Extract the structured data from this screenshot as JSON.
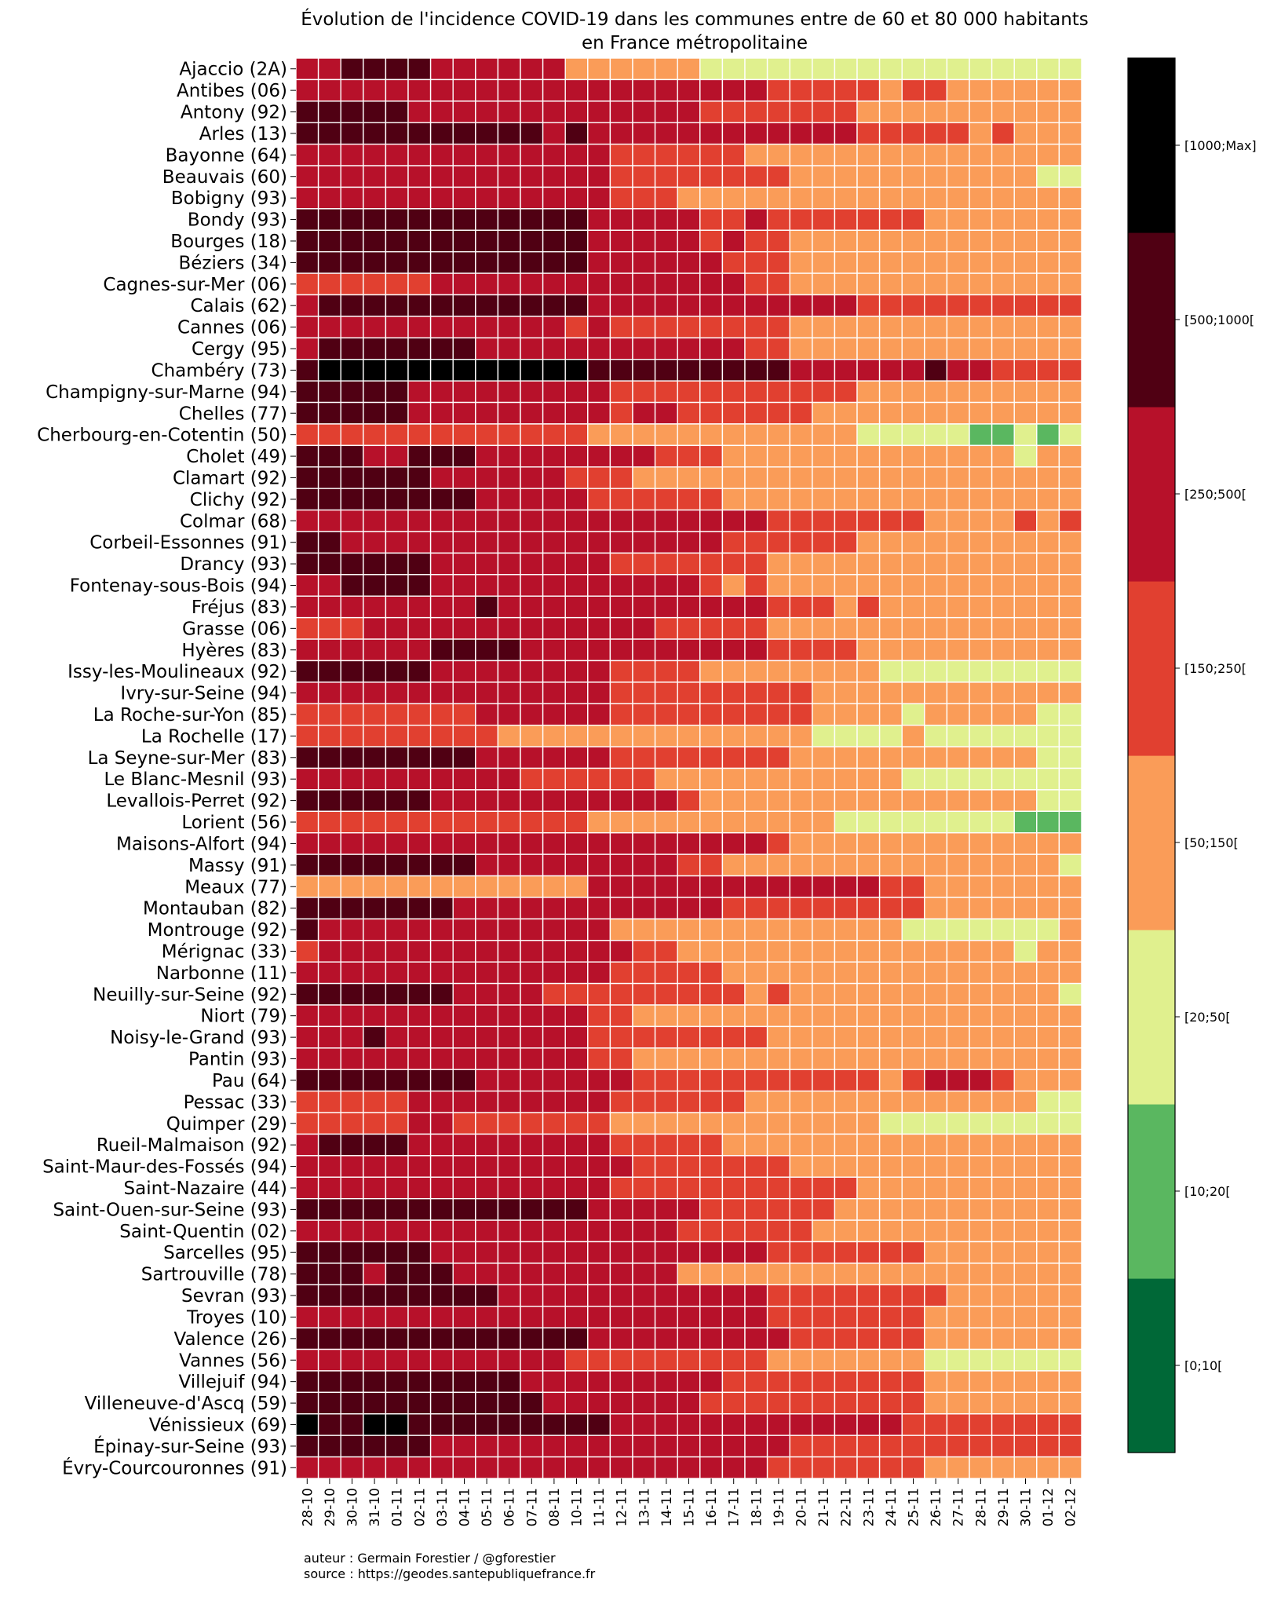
{
  "chart_data": {
    "type": "heatmap",
    "title": "Évolution de l'incidence COVID-19 dans les communes entre de 60 et 80 000 habitants",
    "subtitle": "en France métropolitaine",
    "x": [
      "28-10",
      "29-10",
      "30-10",
      "31-10",
      "01-11",
      "02-11",
      "03-11",
      "04-11",
      "05-11",
      "06-11",
      "07-11",
      "08-11",
      "10-11",
      "11-11",
      "12-11",
      "13-11",
      "14-11",
      "15-11",
      "16-11",
      "17-11",
      "18-11",
      "19-11",
      "20-11",
      "21-11",
      "22-11",
      "23-11",
      "24-11",
      "25-11",
      "26-11",
      "27-11",
      "28-11",
      "29-11",
      "30-11",
      "01-12",
      "02-12"
    ],
    "y": [
      "Ajaccio (2A)",
      "Antibes (06)",
      "Antony (92)",
      "Arles (13)",
      "Bayonne (64)",
      "Beauvais (60)",
      "Bobigny (93)",
      "Bondy (93)",
      "Bourges (18)",
      "Béziers (34)",
      "Cagnes-sur-Mer (06)",
      "Calais (62)",
      "Cannes (06)",
      "Cergy (95)",
      "Chambéry (73)",
      "Champigny-sur-Marne (94)",
      "Chelles (77)",
      "Cherbourg-en-Cotentin (50)",
      "Cholet (49)",
      "Clamart (92)",
      "Clichy (92)",
      "Colmar (68)",
      "Corbeil-Essonnes (91)",
      "Drancy (93)",
      "Fontenay-sous-Bois (94)",
      "Fréjus (83)",
      "Grasse (06)",
      "Hyères (83)",
      "Issy-les-Moulineaux (92)",
      "Ivry-sur-Seine (94)",
      "La Roche-sur-Yon (85)",
      "La Rochelle (17)",
      "La Seyne-sur-Mer (83)",
      "Le Blanc-Mesnil (93)",
      "Levallois-Perret (92)",
      "Lorient (56)",
      "Maisons-Alfort (94)",
      "Massy (91)",
      "Meaux (77)",
      "Montauban (82)",
      "Montrouge (92)",
      "Mérignac (33)",
      "Narbonne (11)",
      "Neuilly-sur-Seine (92)",
      "Niort (79)",
      "Noisy-le-Grand (93)",
      "Pantin (93)",
      "Pau (64)",
      "Pessac (33)",
      "Quimper (29)",
      "Rueil-Malmaison (92)",
      "Saint-Maur-des-Fossés (94)",
      "Saint-Nazaire (44)",
      "Saint-Ouen-sur-Seine (93)",
      "Saint-Quentin (02)",
      "Sarcelles (95)",
      "Sartrouville (78)",
      "Sevran (93)",
      "Troyes (10)",
      "Valence (26)",
      "Vannes (56)",
      "Villejuif (94)",
      "Villeneuve-d'Ascq (59)",
      "Vénissieux (69)",
      "Épinay-sur-Seine (93)",
      "Évry-Courcouronnes (91)"
    ],
    "bins": [
      "[0;10[",
      "[10;20[",
      "[20;50[",
      "[50;150[",
      "[150;250[",
      "[250;500[",
      "[500;1000[",
      "[1000;Max]"
    ],
    "colors": [
      "#006837",
      "#5ab760",
      "#e0f08e",
      "#fa9c58",
      "#e14030",
      "#b7112a",
      "#500013",
      "#000000"
    ],
    "legend": "right",
    "z": [
      "55666655555533333322222222222222222",
      "55555555555555555555544444344333333",
      "66666555555555555544444443333333333",
      "66666666666565555555555554444434333",
      "55555555555555444444333333333333333",
      "55555555555555444444443333333333322",
      "55555555555555444333333333333333333",
      "66666666666665555544544444443333333",
      "66666666666665555545443333333333333",
      "66666666666665555554443333333333333",
      "44444455555555555555443333333333333",
      "56666666666665555555555554444444444",
      "55555555555545444444443333333333333",
      "56666666555555555555443333333333333",
      "67777777777776666666665555556554444",
      "66666555555555444444444443333333333",
      "66666555555555455444444333333333333",
      "44444444444443333333333332222211212",
      "66655666555555554443333333333333233",
      "66666655555544433333333333333333333",
      "66666666555554444443333333333333333",
      "55555555555555555555544444443333434",
      "66555555555555555554444443333333333",
      "66666655555555444444433333333333333",
      "55666655555555555543433333333333333",
      "55555555655555555555544434333333333",
      "44455555555555554444433333333333333",
      "55555566665555555555544443333333333",
      "66666655555555444433333333222222222",
      "55555555555555444444444333333333333",
      "44444444555555444444444333323333322",
      "44444444433333333333333222232222222",
      "66666666555555444444443333333333322",
      "55555555554444443333333333322222222",
      "66666655555555555433333333333333322",
      "44444444444443333333333322222222111",
      "55555555555555555555543333333333333",
      "66666666555555555443333333333333332",
      "33333333333335555555555555443333333",
      "66666665555555555554444444443333333",
      "65555555555555333333333333322222223",
      "45555555555555544333333333333333233",
      "55555555555555444443333333333333333",
      "66666665555444444444343333333333332",
      "55555555555554433333333333333333333",
      "55565555555554444444433333333333333",
      "55555555555554433333333333333333333",
      "66666666555555544444444444345554333",
      "44444555555555444444333333333333322",
      "44444554444444333333333333222222222",
      "56666555555555444443333333333333333",
      "55555555555555544444443333333333333",
      "55555555555555444444444443333333333",
      "66666666666665555544444433333333333",
      "55555555555555555444444333333333333",
      "66666655555555555555544444443333333",
      "66656665555555555333333333333333333",
      "66666666655555555555544444444333333",
      "55555555555555555555544444443333333",
      "66666666666665555555554444443333333",
      "55555555555544444444433333332222222",
      "66666666665555555554444444443333333",
      "66666666666555555544444444443333333",
      "76677666666666555555555555544444444",
      "66666655555555555555554444444444444",
      "55555555555555555555544444443333333"
    ]
  },
  "credits": {
    "author": "auteur : Germain Forestier / @gforestier",
    "source": "source : https://geodes.santepubliquefrance.fr"
  }
}
